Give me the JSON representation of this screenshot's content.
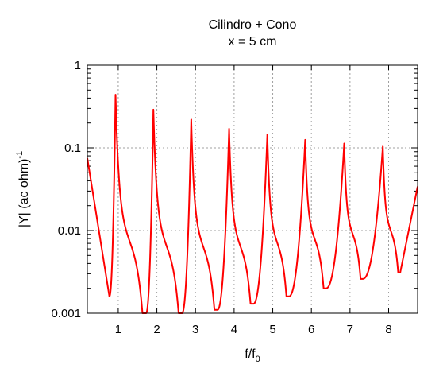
{
  "chart_data": {
    "type": "line",
    "title": "Cilindro + Cono",
    "subtitle": "x = 5 cm",
    "xlabel": {
      "base": "f/f",
      "sub": "0"
    },
    "ylabel": {
      "base": "|Y| (ac ohm)",
      "sup": "-1"
    },
    "x_scale": "linear",
    "y_scale": "log",
    "xlim": [
      0.2,
      8.75
    ],
    "ylim": [
      0.001,
      1
    ],
    "x_ticks": [
      {
        "value": 1,
        "label": "1"
      },
      {
        "value": 2,
        "label": "2"
      },
      {
        "value": 3,
        "label": "3"
      },
      {
        "value": 4,
        "label": "4"
      },
      {
        "value": 5,
        "label": "5"
      },
      {
        "value": 6,
        "label": "6"
      },
      {
        "value": 7,
        "label": "7"
      },
      {
        "value": 8,
        "label": "8"
      }
    ],
    "y_ticks": [
      {
        "value": 0.001,
        "label": "0.001"
      },
      {
        "value": 0.01,
        "label": "0.01"
      },
      {
        "value": 0.1,
        "label": "0.1"
      },
      {
        "value": 1,
        "label": "1"
      }
    ],
    "grid": true,
    "series": [
      {
        "color": "#ff0000",
        "resonance_peaks": [
          {
            "f": 0.93,
            "y": 0.44
          },
          {
            "f": 1.91,
            "y": 0.29
          },
          {
            "f": 2.89,
            "y": 0.22
          },
          {
            "f": 3.87,
            "y": 0.17
          },
          {
            "f": 4.86,
            "y": 0.145
          },
          {
            "f": 5.84,
            "y": 0.125
          },
          {
            "f": 6.85,
            "y": 0.113
          },
          {
            "f": 7.85,
            "y": 0.104
          }
        ],
        "antiresonance_minima": [
          {
            "f": 0.77,
            "y": 0.0016
          },
          {
            "f": 1.72,
            "y": 0.001
          },
          {
            "f": 2.65,
            "y": 0.001
          },
          {
            "f": 3.57,
            "y": 0.0011
          },
          {
            "f": 4.5,
            "y": 0.0013
          },
          {
            "f": 5.42,
            "y": 0.0016
          },
          {
            "f": 6.38,
            "y": 0.002
          },
          {
            "f": 7.33,
            "y": 0.0026
          },
          {
            "f": 8.3,
            "y": 0.0031
          }
        ],
        "start": {
          "f": 0.2,
          "y": 0.075
        },
        "end": {
          "f": 8.75,
          "y": 0.034
        }
      }
    ]
  }
}
